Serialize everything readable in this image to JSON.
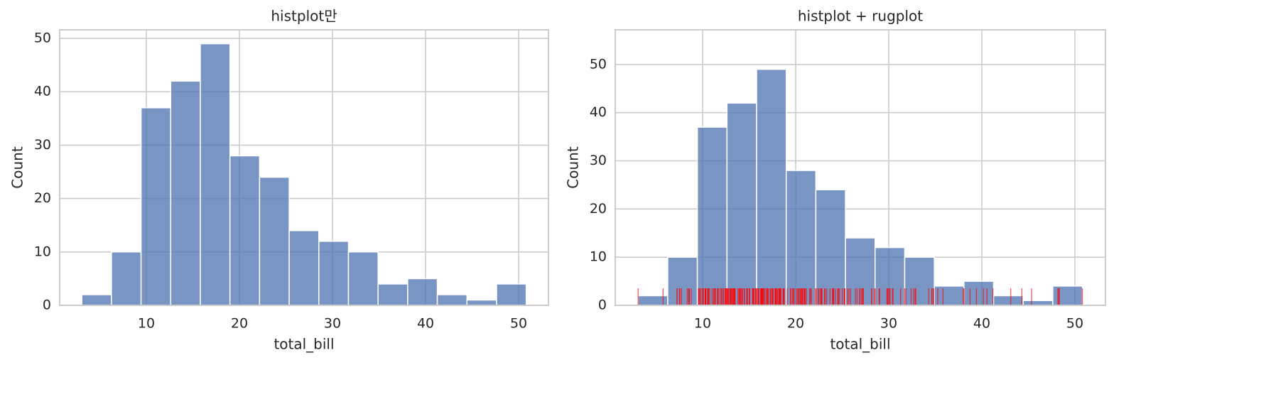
{
  "chart_data": [
    {
      "type": "histogram",
      "title": "histplot만",
      "xlabel": "total_bill",
      "ylabel": "Count",
      "bins": [
        3.07,
        6.2527,
        9.4353,
        12.618,
        15.8007,
        18.9833,
        22.166,
        25.3487,
        28.5313,
        31.714,
        34.8967,
        38.0793,
        41.262,
        44.4447,
        47.6273,
        50.81
      ],
      "values": [
        2,
        10,
        37,
        42,
        49,
        28,
        24,
        14,
        12,
        10,
        4,
        5,
        2,
        1,
        4
      ],
      "color": "#4c72b0",
      "xlim": [
        0.69,
        53.2
      ],
      "ylim": [
        0,
        51.6
      ],
      "xticks": [
        10,
        20,
        30,
        40,
        50
      ],
      "yticks": [
        0,
        10,
        20,
        30,
        40,
        50
      ],
      "grid": true
    },
    {
      "type": "histogram",
      "title": "histplot + rugplot",
      "xlabel": "total_bill",
      "ylabel": "Count",
      "bins": [
        3.07,
        6.2527,
        9.4353,
        12.618,
        15.8007,
        18.9833,
        22.166,
        25.3487,
        28.5313,
        31.714,
        34.8967,
        38.0793,
        41.262,
        44.4447,
        47.6273,
        50.81
      ],
      "values": [
        2,
        10,
        37,
        42,
        49,
        28,
        24,
        14,
        12,
        10,
        4,
        5,
        2,
        1,
        4
      ],
      "color": "#4c72b0",
      "xlim": [
        0.61,
        53.28
      ],
      "ylim": [
        0,
        57.2
      ],
      "xticks": [
        10,
        20,
        30,
        40,
        50
      ],
      "yticks": [
        0,
        10,
        20,
        30,
        40,
        50
      ],
      "grid": true,
      "rug": {
        "color": "red",
        "x": [
          16.99,
          10.34,
          21.01,
          23.68,
          24.59,
          25.29,
          8.77,
          26.88,
          15.04,
          14.78,
          10.27,
          35.26,
          15.42,
          18.43,
          14.83,
          21.58,
          10.33,
          16.29,
          16.97,
          20.65,
          17.92,
          20.29,
          15.77,
          39.42,
          19.82,
          17.81,
          13.37,
          12.69,
          21.7,
          19.65,
          9.55,
          18.35,
          15.06,
          20.69,
          17.78,
          24.06,
          16.31,
          16.93,
          18.69,
          31.27,
          16.04,
          17.46,
          13.94,
          9.68,
          30.4,
          18.29,
          22.23,
          32.4,
          28.55,
          18.04,
          12.54,
          10.29,
          34.81,
          9.94,
          25.56,
          19.49,
          38.01,
          26.41,
          11.24,
          48.27,
          20.29,
          13.81,
          11.02,
          18.29,
          17.59,
          20.08,
          16.45,
          3.07,
          20.23,
          15.01,
          12.02,
          17.07,
          26.86,
          25.28,
          14.73,
          10.51,
          17.92,
          27.2,
          22.76,
          17.29,
          19.44,
          16.66,
          10.07,
          32.68,
          15.98,
          34.83,
          13.03,
          18.28,
          24.71,
          21.16,
          28.97,
          22.49,
          5.75,
          16.32,
          22.75,
          40.17,
          27.28,
          12.03,
          21.01,
          12.46,
          11.35,
          15.38,
          44.3,
          22.42,
          20.92,
          15.36,
          20.49,
          25.21,
          18.24,
          14.31,
          14.0,
          7.25,
          38.07,
          23.95,
          25.71,
          17.31,
          29.93,
          10.65,
          12.43,
          24.08,
          11.69,
          13.42,
          14.26,
          15.95,
          12.48,
          29.8,
          8.52,
          14.52,
          11.38,
          22.82,
          19.08,
          20.27,
          11.17,
          12.26,
          18.26,
          8.51,
          10.33,
          14.15,
          16.0,
          13.16,
          17.47,
          34.3,
          41.19,
          27.05,
          16.43,
          8.35,
          18.64,
          11.87,
          9.78,
          7.51,
          14.07,
          13.13,
          17.26,
          24.55,
          19.77,
          29.85,
          48.17,
          25.0,
          13.39,
          16.49,
          21.5,
          12.66,
          16.21,
          13.81,
          17.51,
          24.52,
          20.76,
          31.71,
          10.59,
          10.63,
          50.81,
          15.81,
          7.25,
          31.85,
          16.82,
          32.9,
          17.89,
          14.48,
          9.6,
          34.63,
          34.65,
          23.33,
          45.35,
          23.17,
          40.55,
          20.69,
          20.9,
          30.46,
          18.15,
          23.1,
          15.69,
          19.81,
          28.44,
          15.48,
          16.58,
          7.56,
          10.34,
          43.11,
          13.0,
          13.51,
          18.71,
          12.74,
          13.0,
          16.4,
          20.53,
          16.47,
          26.59,
          38.73,
          24.27,
          12.76,
          30.06,
          25.89,
          48.33,
          13.27,
          28.17,
          12.9,
          28.15,
          11.59,
          7.74,
          30.14,
          12.16,
          13.42,
          8.58,
          15.98,
          13.42,
          16.27,
          10.09,
          20.45,
          13.28,
          22.12,
          24.01,
          15.69,
          11.61,
          10.77,
          15.53,
          10.07,
          12.6,
          32.83,
          35.83,
          29.03,
          27.18,
          22.67,
          17.82,
          18.78
        ]
      }
    }
  ]
}
